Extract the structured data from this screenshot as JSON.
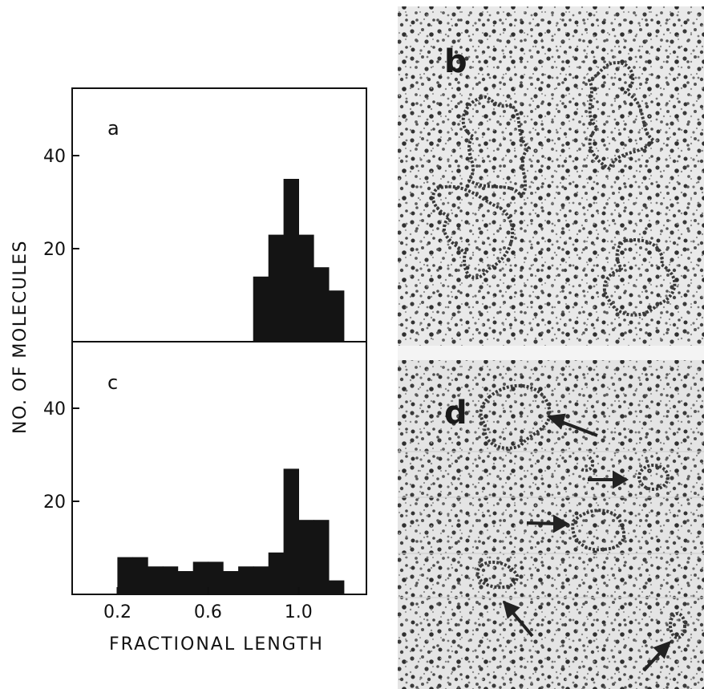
{
  "figure": {
    "ylabel": "NO. OF MOLECULES",
    "xlabel": "FRACTIONAL LENGTH",
    "panels": {
      "a": "a",
      "b": "b",
      "c": "c",
      "d": "d"
    }
  },
  "chart_data": [
    {
      "type": "bar",
      "panel": "a",
      "xlabel": "FRACTIONAL LENGTH",
      "ylabel": "NO. OF MOLECULES",
      "xlim": [
        0.0,
        1.3
      ],
      "ylim": [
        0,
        56
      ],
      "x_ticks": [
        "0.2",
        "0.6",
        "1.0"
      ],
      "y_ticks": [
        "20",
        "40"
      ],
      "bin_width": 0.0667,
      "bins": [
        0.833,
        0.9,
        0.967,
        1.033,
        1.1,
        1.167
      ],
      "values": [
        14,
        23,
        35,
        23,
        16,
        11
      ]
    },
    {
      "type": "bar",
      "panel": "c",
      "xlabel": "FRACTIONAL LENGTH",
      "ylabel": "NO. OF MOLECULES",
      "xlim": [
        0.0,
        1.3
      ],
      "ylim": [
        0,
        56
      ],
      "x_ticks": [
        "0.2",
        "0.6",
        "1.0"
      ],
      "y_ticks": [
        "20",
        "40"
      ],
      "bin_width": 0.0667,
      "bins": [
        0.233,
        0.3,
        0.367,
        0.433,
        0.5,
        0.567,
        0.633,
        0.7,
        0.767,
        0.833,
        0.9,
        0.967,
        1.033,
        1.1,
        1.167
      ],
      "values": [
        8,
        8,
        6,
        6,
        5,
        7,
        7,
        5,
        6,
        6,
        9,
        27,
        16,
        16,
        3
      ]
    }
  ]
}
